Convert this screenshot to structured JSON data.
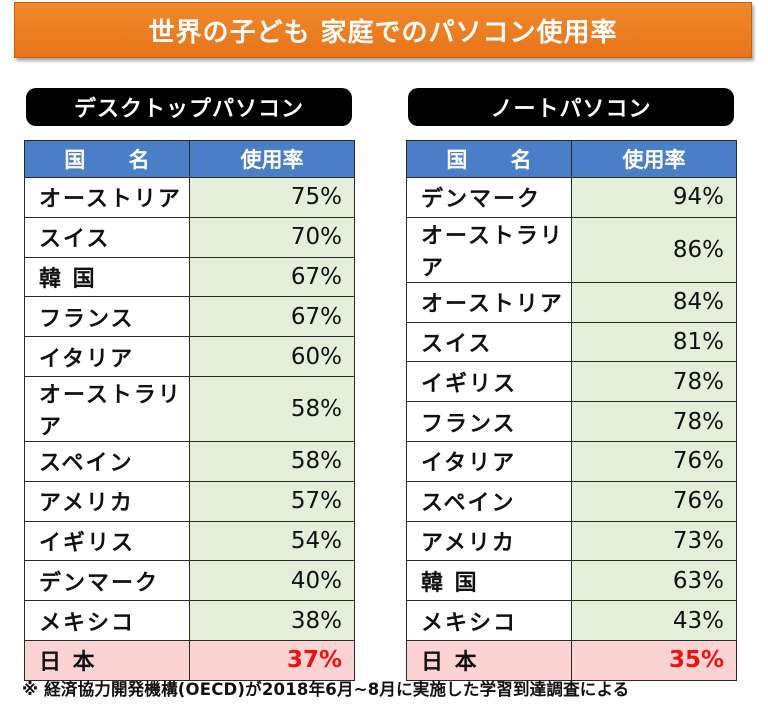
{
  "title": "世界の子ども 家庭でのパソコン使用率",
  "header_country": "国 名",
  "header_rate": "使用率",
  "desktop": {
    "title": "デスクトップパソコン",
    "rows": [
      {
        "country": "オーストリア",
        "rate": "75%"
      },
      {
        "country": "スイス",
        "rate": "70%"
      },
      {
        "country": "韓 国",
        "rate": "67%"
      },
      {
        "country": "フランス",
        "rate": "67%"
      },
      {
        "country": "イタリア",
        "rate": "60%"
      },
      {
        "country": "オーストラリア",
        "rate": "58%"
      },
      {
        "country": "スペイン",
        "rate": "58%"
      },
      {
        "country": "アメリカ",
        "rate": "57%"
      },
      {
        "country": "イギリス",
        "rate": "54%"
      },
      {
        "country": "デンマーク",
        "rate": "40%"
      },
      {
        "country": "メキシコ",
        "rate": "38%"
      }
    ],
    "japan": {
      "country": "日 本",
      "rate": "37%"
    }
  },
  "laptop": {
    "title": "ノートパソコン",
    "rows": [
      {
        "country": "デンマーク",
        "rate": "94%"
      },
      {
        "country": "オーストラリア",
        "rate": "86%"
      },
      {
        "country": "オーストリア",
        "rate": "84%"
      },
      {
        "country": "スイス",
        "rate": "81%"
      },
      {
        "country": "イギリス",
        "rate": "78%"
      },
      {
        "country": "フランス",
        "rate": "78%"
      },
      {
        "country": "イタリア",
        "rate": "76%"
      },
      {
        "country": "スペイン",
        "rate": "76%"
      },
      {
        "country": "アメリカ",
        "rate": "73%"
      },
      {
        "country": "韓 国",
        "rate": "63%"
      },
      {
        "country": "メキシコ",
        "rate": "43%"
      }
    ],
    "japan": {
      "country": "日 本",
      "rate": "35%"
    }
  },
  "footnote": "※ 経済協力開発機構(OECD)が2018年6月~8月に実施した学習到達調査による"
}
